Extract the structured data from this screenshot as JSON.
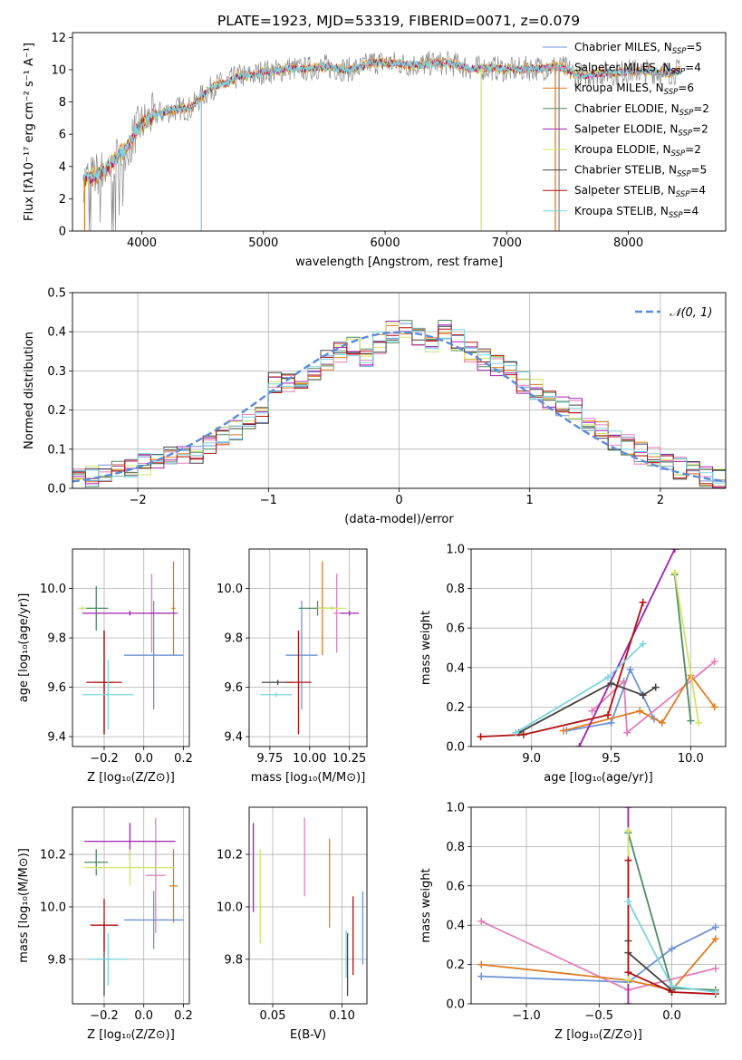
{
  "figure": {
    "title": "PLATE=1923, MJD=53319, FIBERID=0071, z=0.079"
  },
  "chart_data": [
    {
      "id": "spectrum",
      "type": "line",
      "xlabel": "wavelength [Angstrom, rest frame]",
      "ylabel": "Flux [fλ10⁻¹⁷ erg cm⁻² s⁻¹ A⁻¹]",
      "xlim": [
        3430,
        8800
      ],
      "ylim": [
        0,
        12.3
      ],
      "xticks": [
        4000,
        5000,
        6000,
        7000,
        8000
      ],
      "yticks": [
        0,
        2,
        4,
        6,
        8,
        10,
        12
      ],
      "grid": false,
      "legend_position": "right",
      "data_shape": {
        "x": [
          3520,
          3600,
          3700,
          3800,
          3900,
          3950,
          4000,
          4100,
          4200,
          4300,
          4400,
          4500,
          4600,
          4700,
          4800,
          4900,
          5000,
          5100,
          5200,
          5300,
          5400,
          5500,
          5600,
          5700,
          5800,
          5900,
          6000,
          6100,
          6200,
          6300,
          6400,
          6500,
          6600,
          6700,
          6800,
          6900,
          7000,
          7100,
          7200,
          7300,
          7400,
          7500,
          7600,
          7700,
          7800,
          7900,
          8000,
          8100,
          8200,
          8300,
          8400
        ],
        "y": [
          3.2,
          3.4,
          3.8,
          4.6,
          5.4,
          6.2,
          6.6,
          7.2,
          7.4,
          7.6,
          7.6,
          8.4,
          9.0,
          9.2,
          9.6,
          9.6,
          9.9,
          9.9,
          10.1,
          10.0,
          10.1,
          10.2,
          10.1,
          10.0,
          10.1,
          10.5,
          10.4,
          10.4,
          10.3,
          10.3,
          10.4,
          10.4,
          10.3,
          10.1,
          10.1,
          10.1,
          10.0,
          10.0,
          10.1,
          10.1,
          10.2,
          10.0,
          9.6,
          9.7,
          9.8,
          9.8,
          9.9,
          9.9,
          9.9,
          9.8,
          9.9
        ]
      },
      "series": [
        {
          "name": "Chabrier MILES, N_SSP=5",
          "color": "#6d93d6"
        },
        {
          "name": "Salpeter MILES, N_SSP=4",
          "color": "#e37fba"
        },
        {
          "name": "Kroupa MILES, N_SSP=6",
          "color": "#e07c20"
        },
        {
          "name": "Chabrier ELODIE, N_SSP=2",
          "color": "#4f8a64"
        },
        {
          "name": "Salpeter ELODIE, N_SSP=2",
          "color": "#a020b0"
        },
        {
          "name": "Kroupa ELODIE, N_SSP=2",
          "color": "#d4e46a"
        },
        {
          "name": "Chabrier STELIB, N_SSP=5",
          "color": "#444444"
        },
        {
          "name": "Salpeter STELIB, N_SSP=4",
          "color": "#b01010"
        },
        {
          "name": "Kroupa STELIB, N_SSP=4",
          "color": "#7fd4de"
        }
      ]
    },
    {
      "id": "residuals",
      "type": "histogram",
      "xlabel": "(data-model)/error",
      "ylabel": "Normed distribution",
      "xlim": [
        -2.5,
        2.5
      ],
      "ylim": [
        0,
        0.5
      ],
      "xticks": [
        -2,
        -1,
        0,
        1,
        2
      ],
      "yticks": [
        0.0,
        0.1,
        0.2,
        0.3,
        0.4,
        0.5
      ],
      "grid": true,
      "legend_position": "top-right",
      "legend": "𝒩(0, 1)",
      "bin_edges": [
        -2.5,
        -2.4,
        -2.3,
        -2.2,
        -2.1,
        -2.0,
        -1.9,
        -1.8,
        -1.7,
        -1.6,
        -1.5,
        -1.4,
        -1.3,
        -1.2,
        -1.1,
        -1.0,
        -0.9,
        -0.8,
        -0.7,
        -0.6,
        -0.5,
        -0.4,
        -0.3,
        -0.2,
        -0.1,
        0.0,
        0.1,
        0.2,
        0.3,
        0.4,
        0.5,
        0.6,
        0.7,
        0.8,
        0.9,
        1.0,
        1.1,
        1.2,
        1.3,
        1.4,
        1.5,
        1.6,
        1.7,
        1.8,
        1.9,
        2.0,
        2.1,
        2.2,
        2.3,
        2.4,
        2.5
      ],
      "histogram_approx": [
        0.02,
        0.03,
        0.04,
        0.05,
        0.05,
        0.06,
        0.07,
        0.09,
        0.08,
        0.09,
        0.11,
        0.13,
        0.15,
        0.16,
        0.19,
        0.27,
        0.27,
        0.25,
        0.29,
        0.33,
        0.35,
        0.36,
        0.34,
        0.37,
        0.4,
        0.4,
        0.38,
        0.36,
        0.41,
        0.38,
        0.35,
        0.33,
        0.31,
        0.3,
        0.27,
        0.25,
        0.23,
        0.21,
        0.2,
        0.16,
        0.15,
        0.12,
        0.11,
        0.09,
        0.08,
        0.06,
        0.05,
        0.04,
        0.03,
        0.02
      ],
      "curve": {
        "name": "N(0,1)",
        "mean": 0,
        "sigma": 1,
        "color": "#5b8bd9"
      }
    },
    {
      "id": "age-vs-Z",
      "type": "errorbar",
      "xlabel": "Z [log₁₀(Z/Z⊙)]",
      "ylabel": "age  [log₁₀(age/yr)]",
      "xlim": [
        -0.36,
        0.23
      ],
      "ylim": [
        9.36,
        10.16
      ],
      "xticks": [
        -0.2,
        0.0,
        0.2
      ],
      "xticklabels": [
        "−0.2",
        "0.0",
        "0.2"
      ],
      "yticks": [
        9.4,
        9.6,
        9.8,
        10.0
      ],
      "grid": true,
      "points": [
        {
          "x": 0.05,
          "xerr": 0.15,
          "y": 9.73,
          "yerr": 0.22,
          "color": "#6d93d6"
        },
        {
          "x": 0.04,
          "xerr": 0.04,
          "y": 9.9,
          "yerr": 0.16,
          "color": "#e37fba"
        },
        {
          "x": 0.15,
          "xerr": 0.01,
          "y": 9.92,
          "yerr": 0.19,
          "color": "#e07c20"
        },
        {
          "x": -0.24,
          "xerr": 0.06,
          "y": 9.92,
          "yerr": 0.09,
          "color": "#4f8a64"
        },
        {
          "x": -0.07,
          "xerr": 0.24,
          "y": 9.9,
          "yerr": 0.01,
          "color": "#a020b0"
        },
        {
          "x": -0.31,
          "xerr": 0.02,
          "y": 9.92,
          "yerr": 0.01,
          "color": "#d4e46a"
        },
        {
          "x": -0.2,
          "xerr": 0.05,
          "y": 9.62,
          "yerr": 0.21,
          "color": "#444444"
        },
        {
          "x": -0.2,
          "xerr": 0.09,
          "y": 9.62,
          "yerr": 0.21,
          "color": "#b01010"
        },
        {
          "x": -0.18,
          "xerr": 0.13,
          "y": 9.57,
          "yerr": 0.14,
          "color": "#7fd4de"
        }
      ]
    },
    {
      "id": "age-vs-mass",
      "type": "errorbar",
      "xlabel": "mass [log₁₀(M/M⊙)]",
      "xlim": [
        9.62,
        10.36
      ],
      "ylim": [
        9.36,
        10.16
      ],
      "xticks": [
        9.75,
        10.0,
        10.25
      ],
      "yticks": [
        9.4,
        9.6,
        9.8,
        10.0
      ],
      "grid": true,
      "points": [
        {
          "x": 9.95,
          "xerr": 0.1,
          "y": 9.73,
          "yerr": 0.22,
          "color": "#6d93d6"
        },
        {
          "x": 10.17,
          "xerr": 0.02,
          "y": 9.9,
          "yerr": 0.16,
          "color": "#e37fba"
        },
        {
          "x": 10.08,
          "xerr": 0.01,
          "y": 9.92,
          "yerr": 0.19,
          "color": "#e07c20"
        },
        {
          "x": 10.05,
          "xerr": 0.12,
          "y": 9.92,
          "yerr": 0.03,
          "color": "#4f8a64"
        },
        {
          "x": 10.25,
          "xerr": 0.06,
          "y": 9.9,
          "yerr": 0.01,
          "color": "#a020b0"
        },
        {
          "x": 10.14,
          "xerr": 0.09,
          "y": 9.92,
          "yerr": 0.01,
          "color": "#d4e46a"
        },
        {
          "x": 9.8,
          "xerr": 0.1,
          "y": 9.62,
          "yerr": 0.01,
          "color": "#444444"
        },
        {
          "x": 9.93,
          "xerr": 0.08,
          "y": 9.62,
          "yerr": 0.21,
          "color": "#b01010"
        },
        {
          "x": 9.79,
          "xerr": 0.1,
          "y": 9.57,
          "yerr": 0.01,
          "color": "#7fd4de"
        }
      ]
    },
    {
      "id": "massweight-vs-age",
      "type": "line",
      "xlabel": "age  [log₁₀(age/yr)]",
      "ylabel": "mass weight",
      "xlim": [
        8.62,
        10.22
      ],
      "ylim": [
        0,
        1
      ],
      "xticks": [
        9.0,
        9.5,
        10.0
      ],
      "yticks": [
        0.0,
        0.2,
        0.4,
        0.6,
        0.8,
        1.0
      ],
      "grid": true,
      "series": [
        {
          "color": "#6d93d6",
          "x": [
            9.22,
            9.5,
            9.62,
            9.77
          ],
          "y": [
            0.08,
            0.12,
            0.39,
            0.14
          ]
        },
        {
          "color": "#e37fba",
          "x": [
            9.38,
            9.58,
            9.6,
            10.15
          ],
          "y": [
            0.18,
            0.33,
            0.07,
            0.43
          ]
        },
        {
          "color": "#e07c20",
          "x": [
            9.2,
            9.68,
            9.82,
            10.0,
            10.15
          ],
          "y": [
            0.08,
            0.18,
            0.12,
            0.36,
            0.2
          ]
        },
        {
          "color": "#4f8a64",
          "x": [
            9.9,
            10.0
          ],
          "y": [
            0.87,
            0.13
          ]
        },
        {
          "color": "#a020b0",
          "x": [
            9.3,
            9.9
          ],
          "y": [
            0.0,
            1.0
          ]
        },
        {
          "color": "#d4e46a",
          "x": [
            9.9,
            10.05
          ],
          "y": [
            0.88,
            0.12
          ]
        },
        {
          "color": "#444444",
          "x": [
            8.92,
            9.5,
            9.7,
            9.78
          ],
          "y": [
            0.07,
            0.32,
            0.26,
            0.3
          ]
        },
        {
          "color": "#b01010",
          "x": [
            8.68,
            8.95,
            9.48,
            9.7
          ],
          "y": [
            0.05,
            0.06,
            0.16,
            0.73
          ]
        },
        {
          "color": "#7fd4de",
          "x": [
            8.9,
            9.48,
            9.7
          ],
          "y": [
            0.07,
            0.35,
            0.52
          ]
        }
      ]
    },
    {
      "id": "mass-vs-Z",
      "type": "errorbar",
      "xlabel": "Z [log₁₀(Z/Z⊙)]",
      "ylabel": "mass [log₁₀(M/M⊙)]",
      "xlim": [
        -0.36,
        0.23
      ],
      "ylim": [
        9.63,
        10.38
      ],
      "xticks": [
        -0.2,
        0.0,
        0.2
      ],
      "xticklabels": [
        "−0.2",
        "0.0",
        "0.2"
      ],
      "yticks": [
        9.8,
        10.0,
        10.2
      ],
      "grid": true,
      "points": [
        {
          "x": 0.05,
          "xerr": 0.15,
          "y": 9.95,
          "yerr": 0.11,
          "color": "#6d93d6"
        },
        {
          "x": 0.06,
          "xerr": 0.05,
          "y": 10.12,
          "yerr": 0.22,
          "color": "#e37fba"
        },
        {
          "x": 0.15,
          "xerr": 0.02,
          "y": 10.08,
          "yerr": 0.14,
          "color": "#e07c20"
        },
        {
          "x": -0.24,
          "xerr": 0.06,
          "y": 10.17,
          "yerr": 0.05,
          "color": "#4f8a64"
        },
        {
          "x": -0.07,
          "xerr": 0.23,
          "y": 10.25,
          "yerr": 0.07,
          "color": "#a020b0"
        },
        {
          "x": -0.07,
          "xerr": 0.23,
          "y": 10.15,
          "yerr": 0.07,
          "color": "#d4e46a"
        },
        {
          "x": -0.2,
          "xerr": 0.03,
          "y": 9.8,
          "yerr": 0.14,
          "color": "#444444"
        },
        {
          "x": -0.2,
          "xerr": 0.07,
          "y": 9.93,
          "yerr": 0.1,
          "color": "#b01010"
        },
        {
          "x": -0.18,
          "xerr": 0.1,
          "y": 9.8,
          "yerr": 0.1,
          "color": "#7fd4de"
        }
      ]
    },
    {
      "id": "mass-vs-ebv",
      "type": "errorbar",
      "xlabel": "E(B-V)",
      "xlim": [
        0.033,
        0.118
      ],
      "ylim": [
        9.63,
        10.38
      ],
      "xticks": [
        0.05,
        0.1
      ],
      "xticklabels": [
        "0.05",
        "0.10"
      ],
      "yticks": [
        9.8,
        10.0,
        10.2
      ],
      "grid": true,
      "points": [
        {
          "x": 0.115,
          "xerr": 0.0,
          "y": 9.92,
          "yerr": 0.14,
          "color": "#6d93d6"
        },
        {
          "x": 0.073,
          "xerr": 0.0,
          "y": 10.19,
          "yerr": 0.15,
          "color": "#e37fba"
        },
        {
          "x": 0.091,
          "xerr": 0.0,
          "y": 10.09,
          "yerr": 0.17,
          "color": "#e07c20"
        },
        {
          "x": 0.036,
          "xerr": 0.0,
          "y": 10.15,
          "yerr": 0.17,
          "color": "#a020b0"
        },
        {
          "x": 0.041,
          "xerr": 0.0,
          "y": 10.04,
          "yerr": 0.18,
          "color": "#d4e46a"
        },
        {
          "x": 0.104,
          "xerr": 0.0,
          "y": 9.78,
          "yerr": 0.12,
          "color": "#444444"
        },
        {
          "x": 0.108,
          "xerr": 0.0,
          "y": 9.89,
          "yerr": 0.15,
          "color": "#b01010"
        },
        {
          "x": 0.103,
          "xerr": 0.0,
          "y": 9.82,
          "yerr": 0.09,
          "color": "#7fd4de"
        }
      ]
    },
    {
      "id": "massweight-vs-Z",
      "type": "line",
      "xlabel": "Z [log₁₀(Z/Z⊙)]",
      "ylabel": "mass weight",
      "xlim": [
        -1.38,
        0.37
      ],
      "ylim": [
        0,
        1
      ],
      "xticks": [
        -1.0,
        -0.5,
        0.0
      ],
      "xticklabels": [
        "−1.0",
        "−0.5",
        "0.0"
      ],
      "yticks": [
        0.0,
        0.2,
        0.4,
        0.6,
        0.8,
        1.0
      ],
      "grid": true,
      "series": [
        {
          "color": "#6d93d6",
          "x": [
            -1.31,
            -0.3,
            0.0,
            0.3
          ],
          "y": [
            0.14,
            0.11,
            0.28,
            0.39
          ]
        },
        {
          "color": "#e37fba",
          "x": [
            -1.31,
            -0.3,
            0.3
          ],
          "y": [
            0.42,
            0.07,
            0.18
          ]
        },
        {
          "color": "#e07c20",
          "x": [
            -1.31,
            -0.3,
            0.0,
            0.3
          ],
          "y": [
            0.2,
            0.12,
            0.07,
            0.33
          ]
        },
        {
          "color": "#4f8a64",
          "x": [
            -0.3,
            0.0,
            0.3
          ],
          "y": [
            0.87,
            0.08,
            0.07
          ]
        },
        {
          "color": "#a020b0",
          "x": [
            -0.3,
            -0.3
          ],
          "y": [
            0.0,
            1.0
          ]
        },
        {
          "color": "#d4e46a",
          "x": [
            -0.3,
            -0.3
          ],
          "y": [
            0.88,
            0.12
          ]
        },
        {
          "color": "#444444",
          "x": [
            -0.3,
            -0.3,
            0.0
          ],
          "y": [
            0.32,
            0.26,
            0.07
          ]
        },
        {
          "color": "#b01010",
          "x": [
            -0.3,
            -0.3,
            0.0,
            0.3
          ],
          "y": [
            0.73,
            0.16,
            0.06,
            0.05
          ]
        },
        {
          "color": "#7fd4de",
          "x": [
            -0.3,
            0.0,
            0.3
          ],
          "y": [
            0.52,
            0.09,
            0.06
          ]
        }
      ]
    }
  ]
}
